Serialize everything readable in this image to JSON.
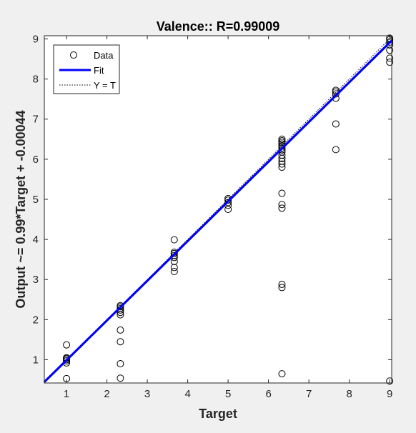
{
  "chart_data": {
    "type": "scatter",
    "title": "Valence:: R=0.99009",
    "xlabel": "Target",
    "ylabel": "Output ~= 0.99*Target + -0.00044",
    "xlim": [
      0.45,
      9.05
    ],
    "ylim": [
      0.42,
      9.08
    ],
    "xticks": [
      1,
      2,
      3,
      4,
      5,
      6,
      7,
      8,
      9
    ],
    "yticks": [
      1,
      2,
      3,
      4,
      5,
      6,
      7,
      8,
      9
    ],
    "grid": false,
    "legend_position": "top-left",
    "series": [
      {
        "name": "Data",
        "marker": "circle",
        "color": "#000000",
        "points": [
          [
            1,
            1.37
          ],
          [
            1,
            1.05
          ],
          [
            1,
            1.03
          ],
          [
            1,
            1.0
          ],
          [
            1,
            0.97
          ],
          [
            1,
            0.92
          ],
          [
            1,
            0.53
          ],
          [
            2.333,
            2.35
          ],
          [
            2.333,
            2.32
          ],
          [
            2.333,
            2.28
          ],
          [
            2.333,
            2.24
          ],
          [
            2.333,
            2.18
          ],
          [
            2.333,
            2.12
          ],
          [
            2.333,
            1.74
          ],
          [
            2.333,
            1.45
          ],
          [
            2.333,
            0.9
          ],
          [
            2.333,
            0.54
          ],
          [
            3.667,
            3.99
          ],
          [
            3.667,
            3.68
          ],
          [
            3.667,
            3.65
          ],
          [
            3.667,
            3.6
          ],
          [
            3.667,
            3.55
          ],
          [
            3.667,
            3.45
          ],
          [
            3.667,
            3.3
          ],
          [
            3.667,
            3.2
          ],
          [
            5,
            5.02
          ],
          [
            5,
            4.98
          ],
          [
            5,
            4.92
          ],
          [
            5,
            4.85
          ],
          [
            5,
            4.75
          ],
          [
            6.333,
            6.5
          ],
          [
            6.333,
            6.46
          ],
          [
            6.333,
            6.42
          ],
          [
            6.333,
            6.38
          ],
          [
            6.333,
            6.33
          ],
          [
            6.333,
            6.28
          ],
          [
            6.333,
            6.23
          ],
          [
            6.333,
            6.18
          ],
          [
            6.333,
            6.1
          ],
          [
            6.333,
            6.02
          ],
          [
            6.333,
            5.95
          ],
          [
            6.333,
            5.88
          ],
          [
            6.333,
            5.8
          ],
          [
            6.333,
            5.15
          ],
          [
            6.333,
            4.87
          ],
          [
            6.333,
            4.78
          ],
          [
            6.333,
            2.88
          ],
          [
            6.333,
            2.8
          ],
          [
            6.333,
            0.65
          ],
          [
            7.667,
            7.72
          ],
          [
            7.667,
            7.68
          ],
          [
            7.667,
            7.63
          ],
          [
            7.667,
            7.52
          ],
          [
            7.667,
            6.88
          ],
          [
            7.667,
            6.24
          ],
          [
            9,
            9.02
          ],
          [
            9,
            8.98
          ],
          [
            9,
            8.92
          ],
          [
            9,
            8.85
          ],
          [
            9,
            8.72
          ],
          [
            9,
            8.52
          ],
          [
            9,
            8.42
          ],
          [
            9,
            0.47
          ]
        ]
      },
      {
        "name": "Fit",
        "type": "line",
        "color": "#0000ff",
        "slope": 0.99,
        "intercept": -0.00044
      },
      {
        "name": "Y = T",
        "type": "line",
        "style": "dotted",
        "color": "#000000",
        "slope": 1,
        "intercept": 0
      }
    ]
  }
}
